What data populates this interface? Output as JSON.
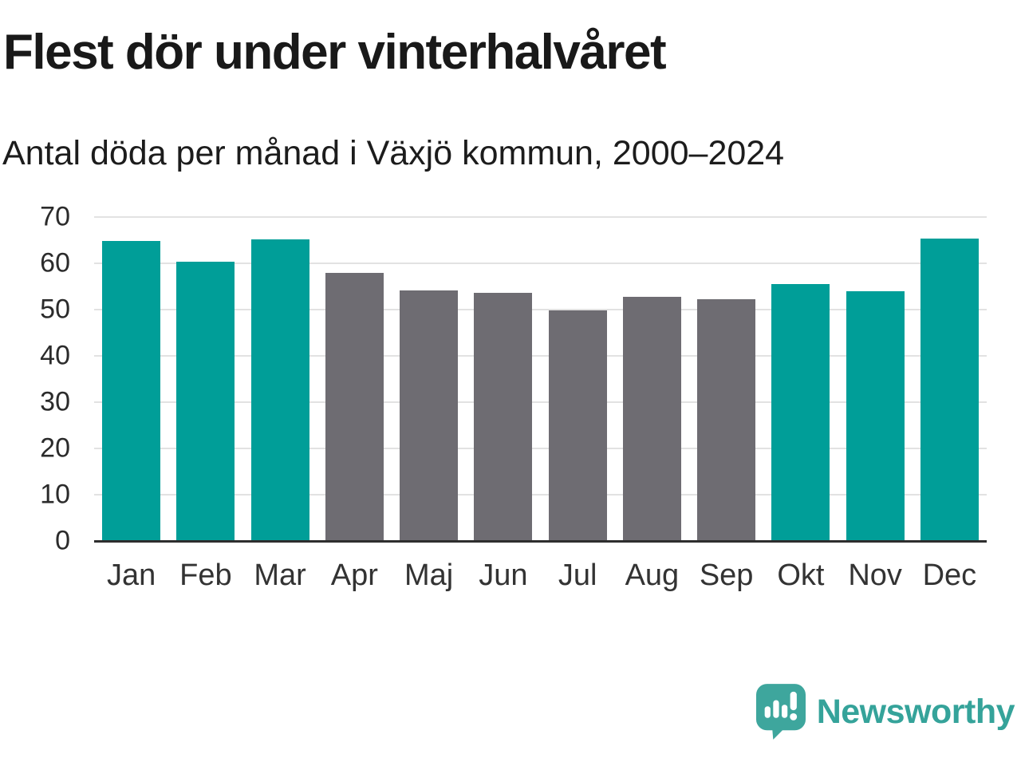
{
  "header": {
    "title": "Flest dör under vinterhalvåret",
    "subtitle": "Antal döda per månad i Växjö kommun, 2000–2024"
  },
  "chart_data": {
    "type": "bar",
    "categories": [
      "Jan",
      "Feb",
      "Mar",
      "Apr",
      "Maj",
      "Jun",
      "Jul",
      "Aug",
      "Sep",
      "Okt",
      "Nov",
      "Dec"
    ],
    "values": [
      64.9,
      60.3,
      65.1,
      58.0,
      54.2,
      53.6,
      49.9,
      52.8,
      52.3,
      55.5,
      54.0,
      65.3
    ],
    "bar_colors": [
      "teal",
      "teal",
      "teal",
      "gray",
      "gray",
      "gray",
      "gray",
      "gray",
      "gray",
      "teal",
      "teal",
      "teal"
    ],
    "palette": {
      "teal": "#009E98",
      "gray": "#6E6C72"
    },
    "title": "Flest dör under vinterhalvåret",
    "subtitle": "Antal döda per månad i Växjö kommun, 2000–2024",
    "xlabel": "",
    "ylabel": "",
    "ylim": [
      0,
      70
    ],
    "ytick_step": 10,
    "yticks": [
      0,
      10,
      20,
      30,
      40,
      50,
      60,
      70
    ],
    "grid": "horizontal-only",
    "legend": "none"
  },
  "footer": {
    "brand": "Newsworthy",
    "brand_color": "#35A39A",
    "logo_icon_color": "#3EA69D",
    "logo_icon": "newsworthy-speech-bubble-bar-chart-icon"
  }
}
